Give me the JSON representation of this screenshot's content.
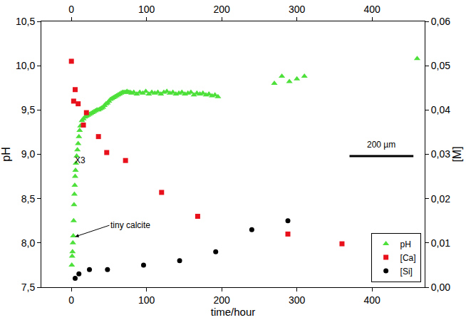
{
  "chart_data": {
    "type": "scatter",
    "x_label": "time/hour",
    "y_label": "pH",
    "y2_label": "[M]",
    "xlim": [
      -40,
      470
    ],
    "xticks": [
      0,
      100,
      200,
      300,
      400
    ],
    "x2lim": [
      -40,
      470
    ],
    "x2ticks": [
      0,
      100,
      200,
      300,
      400
    ],
    "ylim": [
      7.5,
      10.5
    ],
    "yticks": [
      {
        "value": 7.5,
        "label": "7,5"
      },
      {
        "value": 8.0,
        "label": "8,0"
      },
      {
        "value": 8.5,
        "label": "8,5"
      },
      {
        "value": 9.0,
        "label": "9,0"
      },
      {
        "value": 9.5,
        "label": "9,5"
      },
      {
        "value": 10.0,
        "label": "10,0"
      },
      {
        "value": 10.5,
        "label": "10,5"
      }
    ],
    "y2lim": [
      0,
      0.06
    ],
    "y2ticks": [
      {
        "value": 0,
        "label": "0,00"
      },
      {
        "value": 0.01,
        "label": "0,01"
      },
      {
        "value": 0.02,
        "label": "0,02"
      },
      {
        "value": 0.03,
        "label": "0,03"
      },
      {
        "value": 0.04,
        "label": "0,04"
      },
      {
        "value": 0.05,
        "label": "0,05"
      },
      {
        "value": 0.06,
        "label": "0,06"
      }
    ],
    "grid": false,
    "legend": "bottom right",
    "annotations": [
      "tiny calcite",
      "X3",
      "200 µm"
    ],
    "series": [
      {
        "name": "pH",
        "color": "#4ee03a",
        "marker": "triangle-up",
        "axis": "y",
        "x": [
          0.5,
          1,
          1.5,
          2,
          2.5,
          3,
          3.5,
          4,
          4.5,
          5,
          5.5,
          6,
          7,
          8,
          9,
          10,
          11,
          12,
          14,
          16,
          18,
          20,
          22,
          24,
          26,
          28,
          30,
          32,
          34,
          36,
          38,
          40,
          42,
          44,
          46,
          48,
          50,
          52,
          54,
          56,
          58,
          60,
          62,
          64,
          66,
          68,
          70,
          72,
          74,
          76,
          78,
          80,
          83,
          87,
          91,
          95,
          99,
          103,
          107,
          111,
          115,
          119,
          123,
          127,
          131,
          135,
          139,
          143,
          147,
          151,
          155,
          159,
          163,
          167,
          171,
          175,
          179,
          183,
          187,
          191,
          195,
          270,
          280,
          290,
          300,
          310,
          460
        ],
        "values": [
          7.75,
          7.85,
          7.9,
          8.0,
          8.08,
          8.25,
          8.43,
          8.55,
          8.65,
          8.75,
          8.82,
          8.9,
          8.98,
          9.05,
          9.12,
          9.2,
          9.27,
          9.32,
          9.38,
          9.4,
          9.42,
          9.43,
          9.44,
          9.45,
          9.46,
          9.47,
          9.48,
          9.49,
          9.5,
          9.5,
          9.51,
          9.52,
          9.53,
          9.55,
          9.57,
          9.58,
          9.6,
          9.62,
          9.63,
          9.64,
          9.65,
          9.66,
          9.67,
          9.68,
          9.69,
          9.7,
          9.7,
          9.7,
          9.71,
          9.7,
          9.7,
          9.69,
          9.7,
          9.68,
          9.7,
          9.69,
          9.71,
          9.68,
          9.7,
          9.69,
          9.7,
          9.68,
          9.7,
          9.71,
          9.69,
          9.7,
          9.68,
          9.69,
          9.7,
          9.68,
          9.69,
          9.7,
          9.67,
          9.69,
          9.68,
          9.69,
          9.67,
          9.68,
          9.66,
          9.67,
          9.65,
          9.8,
          9.88,
          9.82,
          9.85,
          9.88,
          10.08
        ]
      },
      {
        "name": "[Ca]",
        "color": "#e8101a",
        "marker": "square",
        "axis": "y2",
        "x": [
          0,
          3,
          5,
          9,
          16,
          20,
          36,
          47,
          72,
          120,
          168,
          288,
          360
        ],
        "values": [
          0.051,
          0.042,
          0.0446,
          0.0414,
          0.0366,
          0.0394,
          0.034,
          0.0304,
          0.0286,
          0.0214,
          0.016,
          0.012,
          0.0098
        ]
      },
      {
        "name": "[Si]",
        "color": "#000000",
        "marker": "circle",
        "axis": "y2",
        "x": [
          5,
          10,
          24,
          48,
          96,
          144,
          192,
          240,
          288
        ],
        "values": [
          0.002,
          0.003,
          0.004,
          0.004,
          0.005,
          0.006,
          0.008,
          0.013,
          0.015
        ]
      }
    ]
  }
}
